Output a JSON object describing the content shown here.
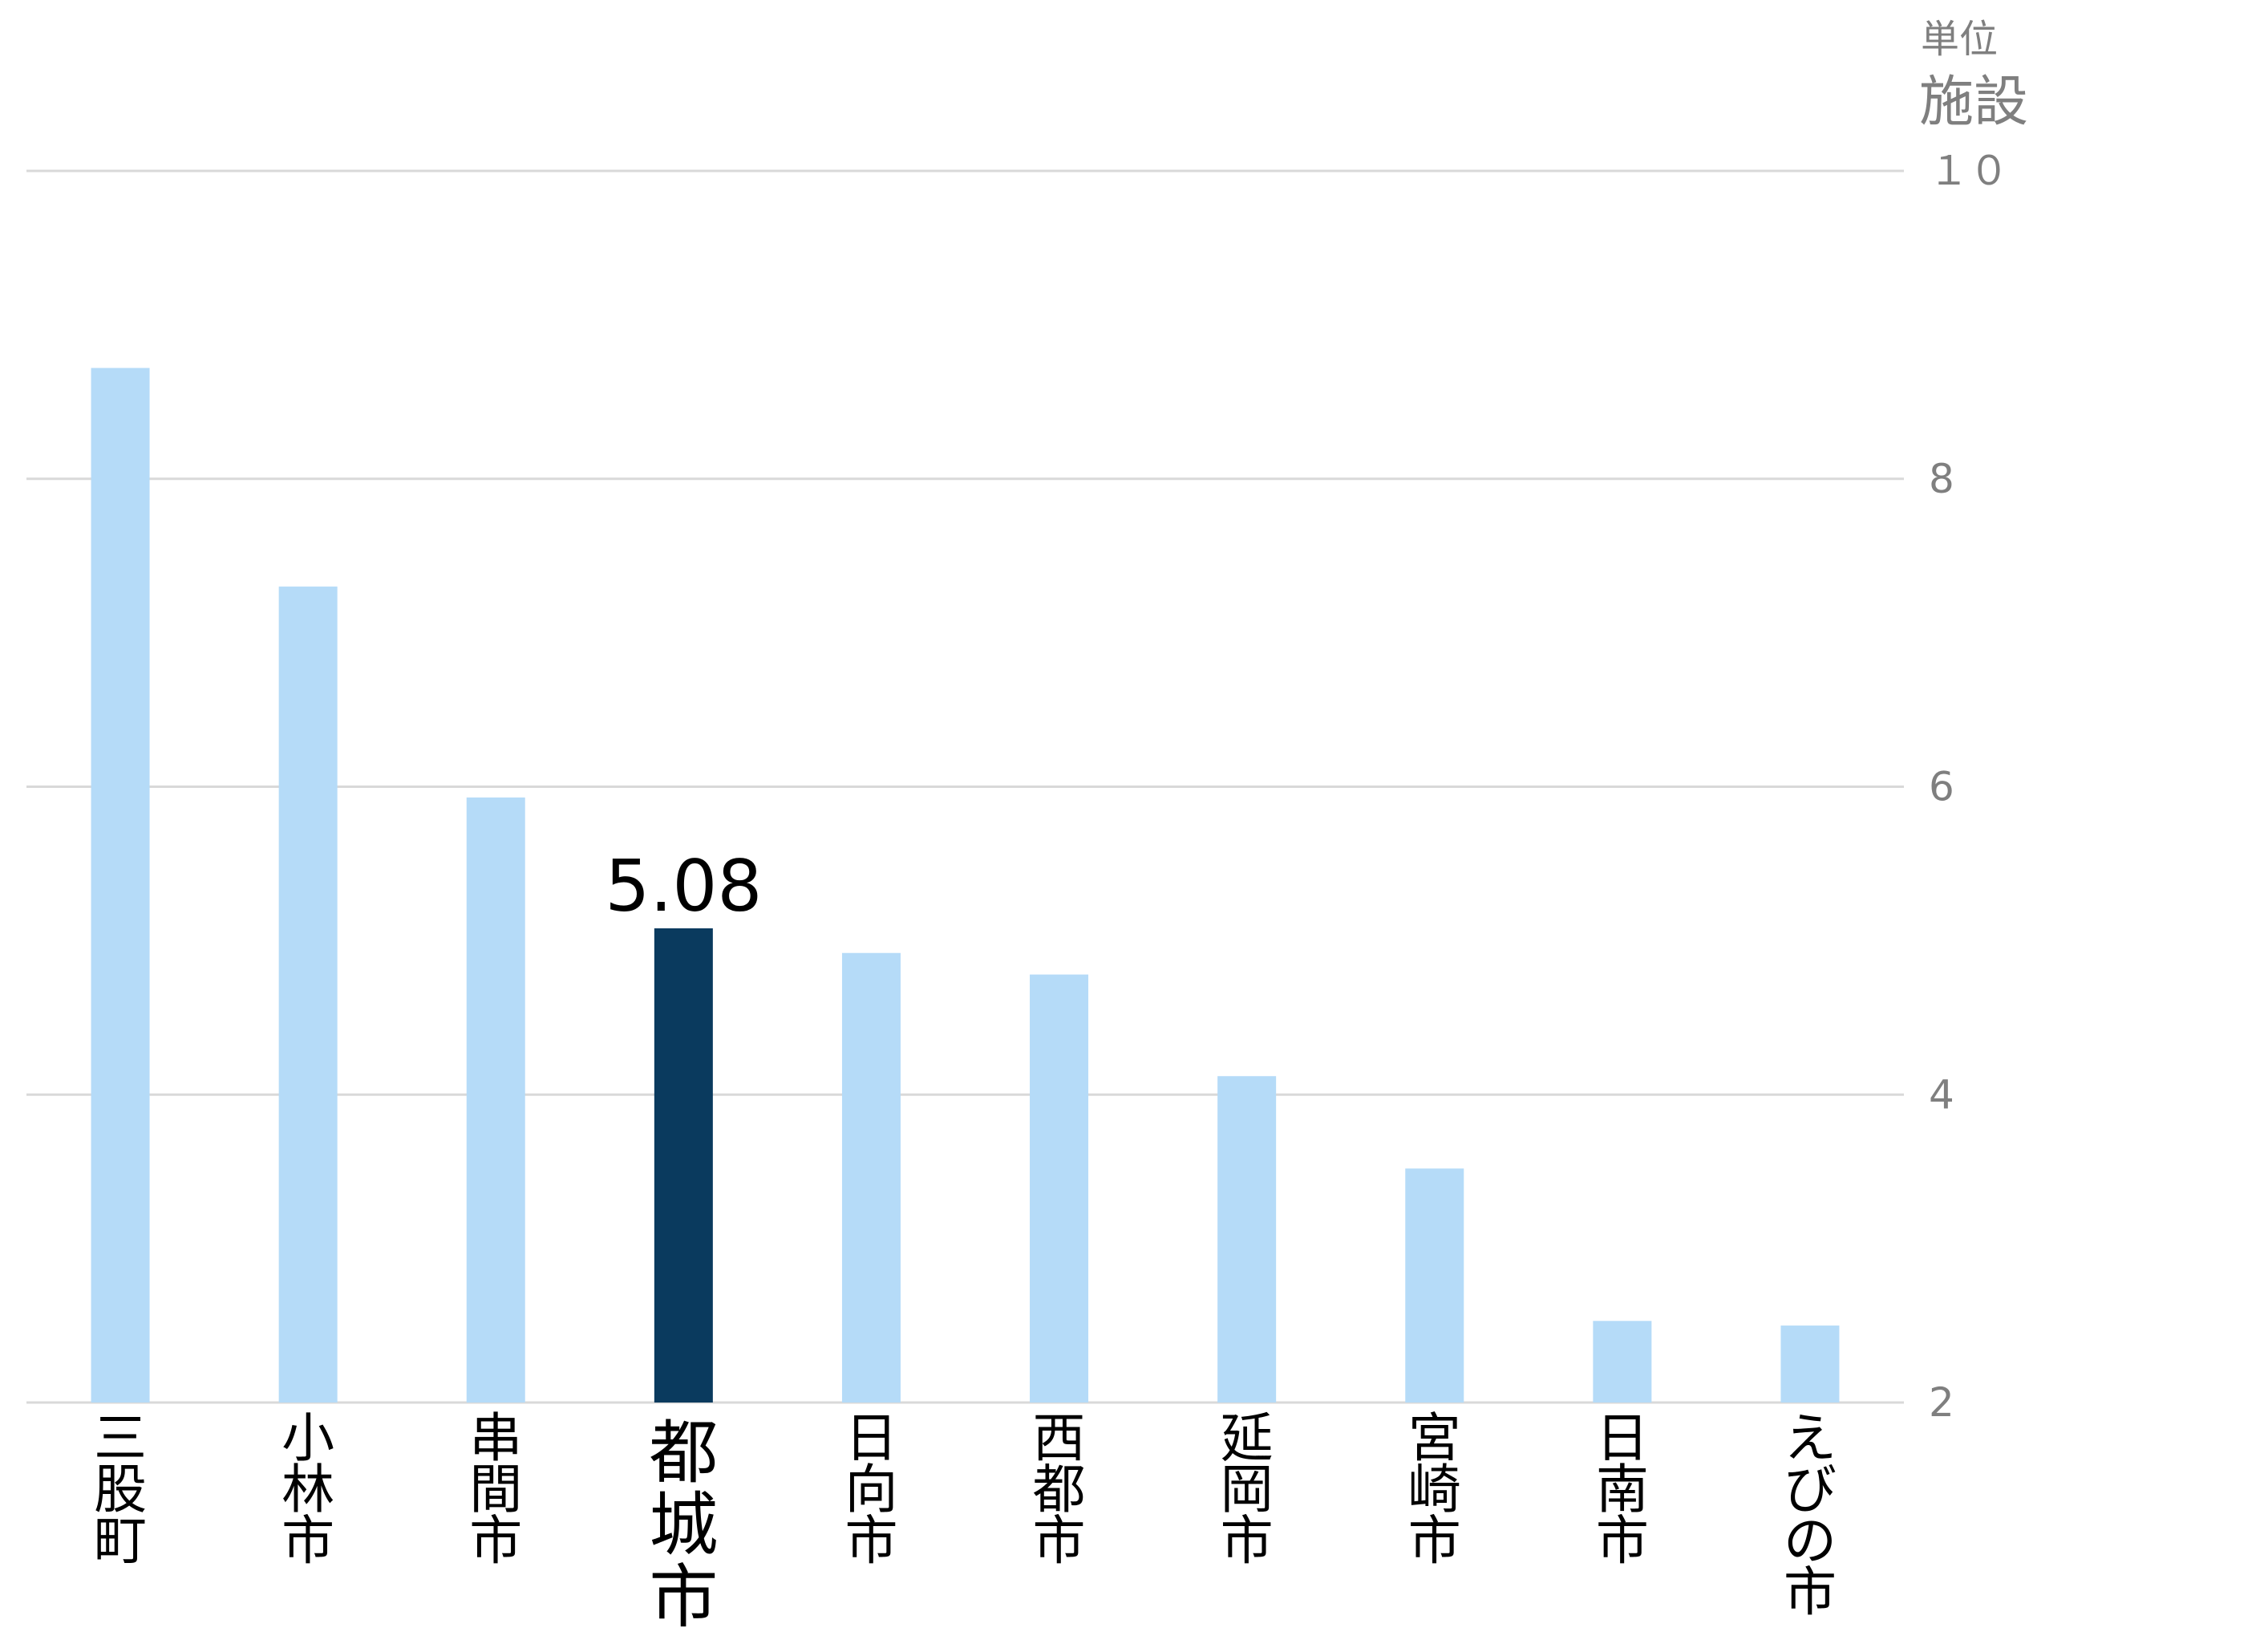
{
  "chart_data": {
    "type": "bar",
    "unit_caption": "単位",
    "unit": "施設",
    "categories": [
      "三股町",
      "小林市",
      "串間市",
      "都城市",
      "日向市",
      "西都市",
      "延岡市",
      "宮崎市",
      "日南市",
      "えびの市"
    ],
    "values": [
      8.72,
      7.3,
      5.93,
      5.08,
      4.92,
      4.78,
      4.12,
      3.52,
      2.53,
      2.5
    ],
    "highlight_category": "都城市",
    "data_labels": {
      "都城市": "5.08"
    },
    "ylim": [
      2,
      10
    ],
    "yticks": [
      2,
      4,
      6,
      8,
      10
    ],
    "ytick_labels": [
      "2",
      "4",
      "6",
      "8",
      "１０"
    ],
    "axis_position": "right",
    "grid": true,
    "colors": {
      "bar": "#b5dbf8",
      "highlight": "#0a3a5e",
      "grid": "#d9d9d9",
      "axis_text": "#7f7f7f"
    }
  }
}
